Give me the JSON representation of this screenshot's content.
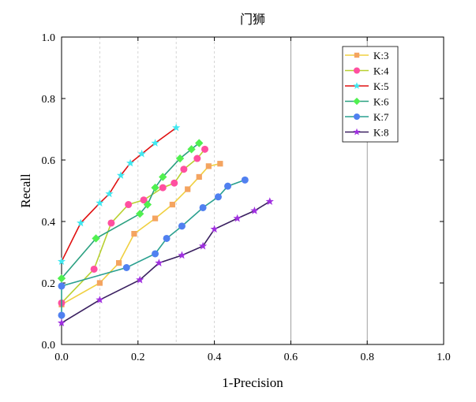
{
  "chart_data": {
    "type": "line",
    "title": "门狮",
    "xlabel": "1-Precision",
    "ylabel": "Recall",
    "xlim": [
      0,
      1.0
    ],
    "ylim": [
      0,
      1.0
    ],
    "xticks": [
      "0.0",
      "0.2",
      "0.4",
      "0.6",
      "0.8",
      "1.0"
    ],
    "yticks": [
      "0.0",
      "0.2",
      "0.4",
      "0.6",
      "0.8",
      "1.0"
    ],
    "grid": true,
    "legend_position": "top-right",
    "series": [
      {
        "name": "K:3",
        "color": "#f0d040",
        "marker_color": "#f4a460",
        "marker": "square",
        "x": [
          0.0,
          0.1,
          0.15,
          0.19,
          0.245,
          0.29,
          0.33,
          0.36,
          0.385,
          0.415
        ],
        "y": [
          0.13,
          0.2,
          0.265,
          0.36,
          0.41,
          0.455,
          0.505,
          0.545,
          0.58,
          0.588
        ]
      },
      {
        "name": "K:4",
        "color": "#b8d030",
        "marker_color": "#ff4fa0",
        "marker": "circle",
        "x": [
          0.0,
          0.085,
          0.13,
          0.175,
          0.215,
          0.265,
          0.295,
          0.32,
          0.355,
          0.375
        ],
        "y": [
          0.135,
          0.245,
          0.395,
          0.455,
          0.47,
          0.51,
          0.525,
          0.57,
          0.605,
          0.635
        ]
      },
      {
        "name": "K:5",
        "color": "#e01010",
        "marker_color": "#40e8f0",
        "marker": "star",
        "x": [
          0.0,
          0.05,
          0.1,
          0.125,
          0.155,
          0.18,
          0.21,
          0.245,
          0.3
        ],
        "y": [
          0.27,
          0.395,
          0.46,
          0.49,
          0.55,
          0.59,
          0.62,
          0.655,
          0.705
        ]
      },
      {
        "name": "K:6",
        "color": "#2aa080",
        "marker_color": "#50f050",
        "marker": "diamond",
        "x": [
          0.0,
          0.09,
          0.205,
          0.225,
          0.245,
          0.265,
          0.31,
          0.34,
          0.36
        ],
        "y": [
          0.215,
          0.345,
          0.425,
          0.455,
          0.51,
          0.545,
          0.605,
          0.635,
          0.655
        ]
      },
      {
        "name": "K:7",
        "color": "#2aa090",
        "marker_color": "#5080f0",
        "marker": "circle",
        "x": [
          0.0,
          0.0,
          0.17,
          0.245,
          0.275,
          0.315,
          0.37,
          0.41,
          0.435,
          0.48
        ],
        "y": [
          0.095,
          0.19,
          0.25,
          0.295,
          0.345,
          0.385,
          0.445,
          0.48,
          0.515,
          0.535
        ]
      },
      {
        "name": "K:8",
        "color": "#3a2060",
        "marker_color": "#a030e0",
        "marker": "star",
        "x": [
          0.0,
          0.1,
          0.205,
          0.255,
          0.315,
          0.37,
          0.4,
          0.46,
          0.505,
          0.545
        ],
        "y": [
          0.07,
          0.145,
          0.21,
          0.265,
          0.29,
          0.32,
          0.375,
          0.41,
          0.435,
          0.465
        ]
      }
    ]
  }
}
